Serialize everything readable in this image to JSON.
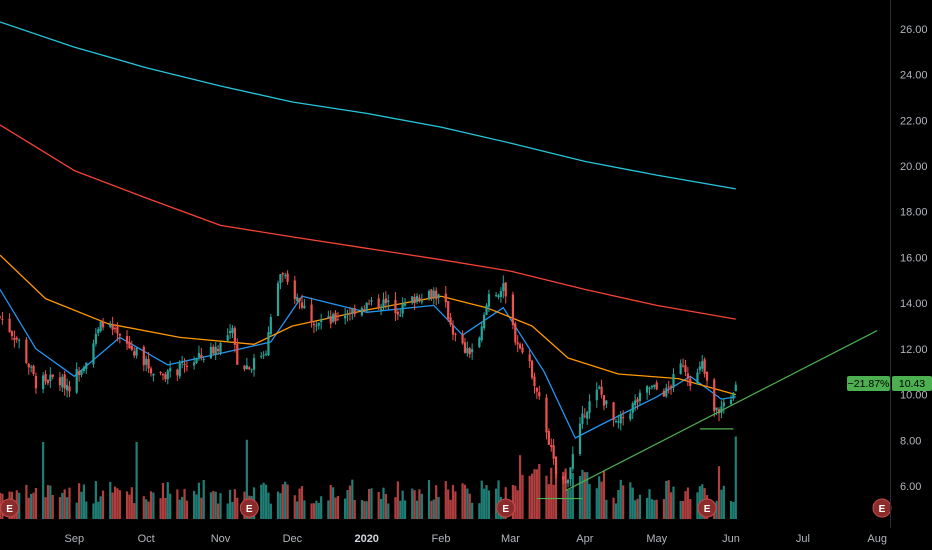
{
  "colors": {
    "background": "#000000",
    "up": "#26a69a",
    "down": "#ef5350",
    "up_volume": "#1f7f76",
    "down_volume": "#b23f3f",
    "ma_fast": "#2196f3",
    "ma_mid": "#ff9800",
    "ma_slow": "#f44336",
    "ma_long": "#26c6da",
    "trendline": "#4caf50",
    "earnings_fill": "#8b2c2c",
    "price_pill": "#4caf50",
    "axis_text": "#b2b5be"
  },
  "price_badge": {
    "change": "−21.87%",
    "price": "10.43"
  },
  "chart_data": {
    "type": "candlestick",
    "title": "",
    "y_axis": {
      "position": "right",
      "ticks": [
        "6.00",
        "8.00",
        "10.00",
        "12.00",
        "14.00",
        "16.00",
        "18.00",
        "20.00",
        "22.00",
        "24.00",
        "26.00"
      ],
      "ylim": [
        4.5,
        27
      ]
    },
    "x_axis": {
      "ticks": [
        "Sep",
        "Oct",
        "Nov",
        "Dec",
        "2020",
        "Feb",
        "Mar",
        "Apr",
        "May",
        "Jun",
        "Jul",
        "Aug"
      ],
      "bold_ticks": [
        "2020"
      ],
      "range": [
        "2019-08-01",
        "2020-08-03"
      ]
    },
    "price_key_points": [
      [
        "2019-08-01",
        13.4
      ],
      [
        "2019-08-09",
        12.3
      ],
      [
        "2019-08-16",
        10.5
      ],
      [
        "2019-08-23",
        10.7
      ],
      [
        "2019-08-30",
        10.4
      ],
      [
        "2019-09-06",
        11.6
      ],
      [
        "2019-09-13",
        13.2
      ],
      [
        "2019-09-20",
        12.4
      ],
      [
        "2019-09-27",
        11.8
      ],
      [
        "2019-10-04",
        11.0
      ],
      [
        "2019-10-11",
        10.9
      ],
      [
        "2019-10-18",
        11.3
      ],
      [
        "2019-10-25",
        11.7
      ],
      [
        "2019-11-01",
        12.2
      ],
      [
        "2019-11-06",
        12.7
      ],
      [
        "2019-11-08",
        11.5
      ],
      [
        "2019-11-13",
        11.2
      ],
      [
        "2019-11-20",
        12.0
      ],
      [
        "2019-11-24",
        14.5
      ],
      [
        "2019-11-26",
        15.3
      ],
      [
        "2019-12-03",
        14.2
      ],
      [
        "2019-12-10",
        13.3
      ],
      [
        "2019-12-17",
        13.2
      ],
      [
        "2019-12-24",
        13.6
      ],
      [
        "2019-12-31",
        13.9
      ],
      [
        "2020-01-08",
        14.0
      ],
      [
        "2020-01-15",
        13.7
      ],
      [
        "2020-01-22",
        14.3
      ],
      [
        "2020-01-29",
        14.5
      ],
      [
        "2020-02-03",
        13.8
      ],
      [
        "2020-02-07",
        12.5
      ],
      [
        "2020-02-12",
        11.8
      ],
      [
        "2020-02-17",
        12.3
      ],
      [
        "2020-02-21",
        14.4
      ],
      [
        "2020-02-27",
        14.6
      ],
      [
        "2020-03-03",
        12.5
      ],
      [
        "2020-03-10",
        11.0
      ],
      [
        "2020-03-16",
        8.5
      ],
      [
        "2020-03-20",
        6.5
      ],
      [
        "2020-03-24",
        6.1
      ],
      [
        "2020-03-27",
        7.3
      ],
      [
        "2020-04-01",
        9.3
      ],
      [
        "2020-04-07",
        10.2
      ],
      [
        "2020-04-14",
        8.6
      ],
      [
        "2020-04-21",
        9.5
      ],
      [
        "2020-04-28",
        10.3
      ],
      [
        "2020-05-05",
        10.1
      ],
      [
        "2020-05-12",
        11.4
      ],
      [
        "2020-05-16",
        10.4
      ],
      [
        "2020-05-20",
        11.3
      ],
      [
        "2020-05-25",
        9.2
      ],
      [
        "2020-05-28",
        9.4
      ],
      [
        "2020-06-01",
        9.5
      ],
      [
        "2020-06-03",
        10.43
      ]
    ],
    "moving_averages": [
      {
        "points": [
          [
            "2019-08-01",
            14.6
          ],
          [
            "2019-08-16",
            12.0
          ],
          [
            "2019-09-01",
            10.8
          ],
          [
            "2019-09-20",
            12.5
          ],
          [
            "2019-10-10",
            11.3
          ],
          [
            "2019-11-01",
            11.8
          ],
          [
            "2019-11-22",
            12.3
          ],
          [
            "2019-12-05",
            14.3
          ],
          [
            "2020-01-01",
            13.6
          ],
          [
            "2020-01-29",
            13.9
          ],
          [
            "2020-02-10",
            12.6
          ],
          [
            "2020-02-27",
            13.8
          ],
          [
            "2020-03-15",
            11.0
          ],
          [
            "2020-03-28",
            8.1
          ],
          [
            "2020-04-10",
            8.8
          ],
          [
            "2020-05-01",
            9.9
          ],
          [
            "2020-05-15",
            10.8
          ],
          [
            "2020-05-28",
            9.8
          ],
          [
            "2020-06-03",
            9.9
          ]
        ]
      },
      {
        "points": [
          [
            "2019-08-01",
            16.1
          ],
          [
            "2019-08-20",
            14.2
          ],
          [
            "2019-09-15",
            13.1
          ],
          [
            "2019-10-15",
            12.5
          ],
          [
            "2019-11-15",
            12.2
          ],
          [
            "2019-12-01",
            13.0
          ],
          [
            "2020-01-01",
            13.7
          ],
          [
            "2020-02-01",
            14.3
          ],
          [
            "2020-02-20",
            13.8
          ],
          [
            "2020-03-10",
            13.0
          ],
          [
            "2020-03-25",
            11.6
          ],
          [
            "2020-04-15",
            10.9
          ],
          [
            "2020-05-10",
            10.7
          ],
          [
            "2020-06-03",
            10.0
          ]
        ]
      },
      {
        "points": [
          [
            "2019-08-01",
            21.8
          ],
          [
            "2019-09-01",
            19.8
          ],
          [
            "2019-10-01",
            18.6
          ],
          [
            "2019-11-01",
            17.4
          ],
          [
            "2019-12-01",
            16.9
          ],
          [
            "2020-01-01",
            16.4
          ],
          [
            "2020-02-01",
            15.9
          ],
          [
            "2020-03-01",
            15.4
          ],
          [
            "2020-04-01",
            14.6
          ],
          [
            "2020-05-01",
            13.9
          ],
          [
            "2020-06-03",
            13.3
          ]
        ]
      },
      {
        "points": [
          [
            "2019-08-01",
            26.3
          ],
          [
            "2019-09-01",
            25.2
          ],
          [
            "2019-10-01",
            24.3
          ],
          [
            "2019-11-01",
            23.5
          ],
          [
            "2019-12-01",
            22.8
          ],
          [
            "2020-01-01",
            22.3
          ],
          [
            "2020-02-01",
            21.7
          ],
          [
            "2020-03-01",
            21.0
          ],
          [
            "2020-04-01",
            20.2
          ],
          [
            "2020-05-01",
            19.6
          ],
          [
            "2020-06-03",
            19.0
          ]
        ]
      }
    ],
    "trendlines": [
      {
        "from": [
          "2020-03-24",
          5.8
        ],
        "to": [
          "2020-08-01",
          12.8
        ]
      },
      {
        "from": [
          "2020-03-12",
          5.45
        ],
        "to": [
          "2020-03-31",
          5.45
        ]
      },
      {
        "from": [
          "2020-05-19",
          8.5
        ],
        "to": [
          "2020-06-02",
          8.5
        ]
      }
    ],
    "volume": {
      "scale_max": 100,
      "big_spikes": [
        [
          "2019-08-19",
          70
        ],
        [
          "2019-09-27",
          70
        ],
        [
          "2019-11-12",
          72
        ],
        [
          "2020-03-05",
          58
        ],
        [
          "2020-03-13",
          50
        ],
        [
          "2020-05-27",
          48
        ],
        [
          "2020-06-03",
          75
        ]
      ]
    },
    "earnings_markers": [
      {
        "date": "2019-08-05",
        "label": "E"
      },
      {
        "date": "2019-11-13",
        "label": "E"
      },
      {
        "date": "2020-02-28",
        "label": "E"
      },
      {
        "date": "2020-05-22",
        "label": "E"
      },
      {
        "date": "2020-08-03",
        "label": "E"
      }
    ]
  }
}
